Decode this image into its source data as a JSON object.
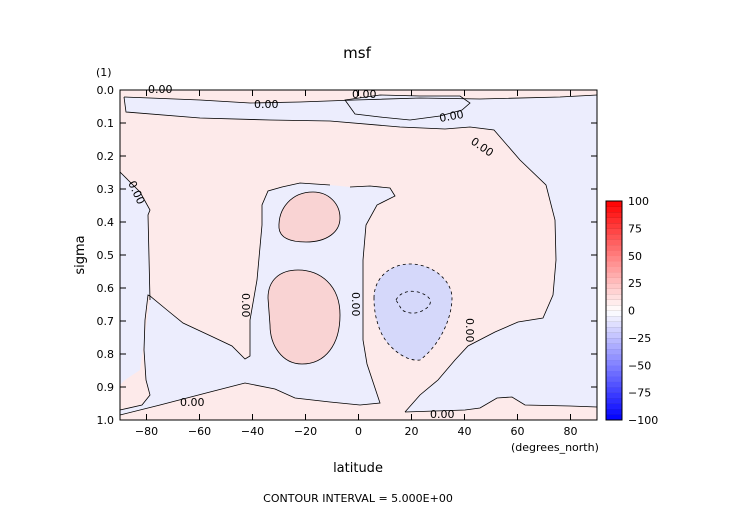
{
  "chart_data": {
    "type": "contour",
    "title": "msf",
    "xlabel": "latitude",
    "x_units": "(degrees_north)",
    "ylabel": "sigma",
    "y_units": "(1)",
    "xlim": [
      -90,
      90
    ],
    "ylim": [
      0.0,
      1.0
    ],
    "y_inverted": true,
    "x_ticks": [
      -80,
      -60,
      -40,
      -20,
      0,
      20,
      40,
      60,
      80
    ],
    "x_tick_labels": [
      "−80",
      "−60",
      "−40",
      "−20",
      "0",
      "20",
      "40",
      "60",
      "80"
    ],
    "y_ticks": [
      0.0,
      0.1,
      0.2,
      0.3,
      0.4,
      0.5,
      0.6,
      0.7,
      0.8,
      0.9,
      1.0
    ],
    "y_tick_labels": [
      "0.0",
      "0.1",
      "0.2",
      "0.3",
      "0.4",
      "0.5",
      "0.6",
      "0.7",
      "0.8",
      "0.9",
      "1.0"
    ],
    "contour_interval_text": "CONTOUR INTERVAL = 5.000E+00",
    "contour_labels": [
      "0.00",
      "0.00",
      "0.00",
      "0.00",
      "0.00",
      "0.00",
      "0.00",
      "0.00",
      "0.00",
      "0.00"
    ],
    "colorbar": {
      "min": -100,
      "max": 100,
      "step": 5,
      "ticks": [
        100,
        75,
        50,
        25,
        0,
        -25,
        -50,
        -75,
        -100
      ],
      "tick_labels": [
        "100",
        "75",
        "50",
        "25",
        "0",
        "−25",
        "−50",
        "−75",
        "−100"
      ],
      "negative_color": "#0000ff",
      "positive_color": "#ff0000",
      "zero_color": "#ffffff"
    },
    "field_colors": {
      "positive_weak": "#fdeaea",
      "negative_weak": "#ecedfd",
      "positive_moderate": "#f9d3d3",
      "negative_moderate": "#d5d8fa"
    }
  }
}
